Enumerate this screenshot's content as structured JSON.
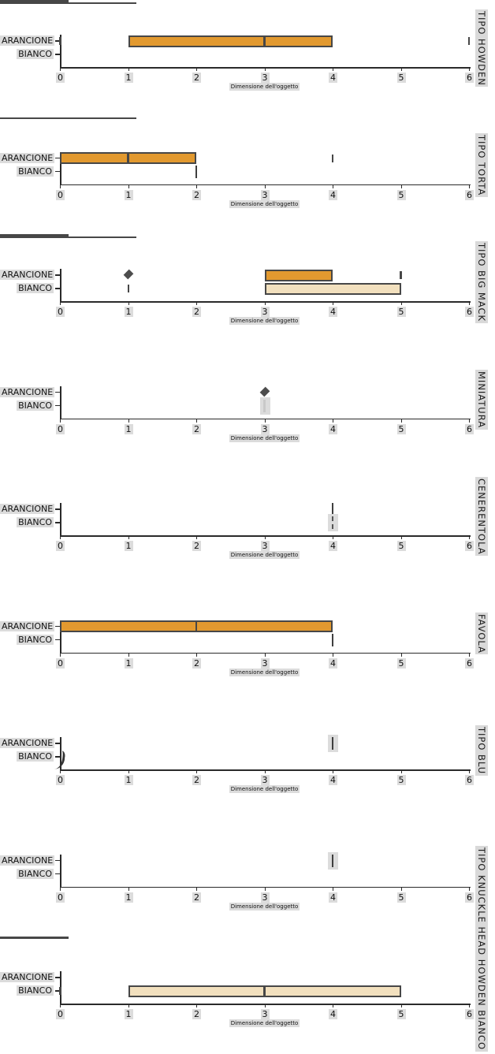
{
  "colors": {
    "orange_box": "#E2992F",
    "beige_box": "#F2E0BE",
    "box_border": "#474747",
    "axis_line": "#2a2a2a",
    "text_highlight_bg": "#dcdcdc",
    "outlier": "#4d4d4d"
  },
  "axis": {
    "xlabel": "Dimensione dell'oggetto",
    "xmin": 0,
    "xmax": 6,
    "ticks": [
      0,
      1,
      2,
      3,
      4,
      5,
      6
    ],
    "categories": [
      "ARANCIONE",
      "BIANCO"
    ]
  },
  "chart_data": [
    {
      "type": "box",
      "title": "TIPO HOWDEN",
      "xlabel": "Dimensione dell'oggetto",
      "xlim": [
        0,
        6
      ],
      "groups": [
        {
          "category": "ARANCIONE",
          "fill": "orange",
          "q1": 1,
          "median": 3,
          "q3": 4,
          "whisker_low": 0,
          "whisker_high": 6,
          "outliers": []
        },
        {
          "category": "BIANCO"
        }
      ]
    },
    {
      "type": "box",
      "title": "TIPO TORTA",
      "xlabel": "Dimensione dell'oggetto",
      "xlim": [
        0,
        6
      ],
      "groups": [
        {
          "category": "ARANCIONE",
          "fill": "orange",
          "q1": 0,
          "median": 1,
          "q3": 2,
          "whisker_low": 0,
          "whisker_high": 4,
          "outliers": []
        },
        {
          "category": "BIANCO",
          "single_value": 2,
          "style": "solid"
        }
      ]
    },
    {
      "type": "box",
      "title": "TIPO BIG MACK",
      "xlabel": "Dimensione dell'oggetto",
      "xlim": [
        0,
        6
      ],
      "groups": [
        {
          "category": "ARANCIONE",
          "fill": "orange",
          "q1": 3,
          "median": 3,
          "q3": 4,
          "whisker_low": 3,
          "whisker_high": 5,
          "outliers": [
            1
          ]
        },
        {
          "category": "BIANCO",
          "fill": "beige",
          "q1": 3,
          "median": 3,
          "q3": 5,
          "whisker_low": 1,
          "whisker_high": 5,
          "outliers": []
        }
      ]
    },
    {
      "type": "box",
      "title": "MINIATURA",
      "xlabel": "Dimensione dell'oggetto",
      "xlim": [
        0,
        6
      ],
      "groups": [
        {
          "category": "ARANCIONE",
          "outliers": [
            3
          ]
        },
        {
          "category": "BIANCO",
          "single_value": 3,
          "style": "ghost"
        }
      ]
    },
    {
      "type": "box",
      "title": "CENERENTOLA",
      "xlabel": "Dimensione dell'oggetto",
      "xlim": [
        0,
        6
      ],
      "groups": [
        {
          "category": "ARANCIONE",
          "single_value": 4,
          "style": "solid"
        },
        {
          "category": "BIANCO",
          "single_value": 4,
          "style": "dashed-highlight"
        }
      ]
    },
    {
      "type": "box",
      "title": "FAVOLA",
      "xlabel": "Dimensione dell'oggetto",
      "xlim": [
        0,
        6
      ],
      "groups": [
        {
          "category": "ARANCIONE",
          "fill": "orange",
          "q1": 0,
          "median": 2,
          "q3": 4,
          "whisker_low": 0,
          "whisker_high": 4,
          "outliers": []
        },
        {
          "category": "BIANCO",
          "single_value": 4,
          "style": "solid"
        }
      ]
    },
    {
      "type": "box",
      "title": "TIPO BLU",
      "xlabel": "Dimensione dell'oggetto",
      "xlim": [
        0,
        6
      ],
      "groups": [
        {
          "category": "ARANCIONE",
          "single_value": 4,
          "style": "solid-highlight"
        },
        {
          "category": "BIANCO",
          "single_value": 0,
          "style": "curve"
        }
      ]
    },
    {
      "type": "box",
      "title": "",
      "xlabel": "Dimensione dell'oggetto",
      "xlim": [
        0,
        6
      ],
      "groups": [
        {
          "category": "ARANCIONE",
          "single_value": 4,
          "style": "solid-highlight"
        },
        {
          "category": "BIANCO"
        }
      ]
    },
    {
      "type": "box",
      "title": "TIPO KNUCKLE HEAD HOWDEN BIANCO",
      "xlabel": "Dimensione dell'oggetto",
      "xlim": [
        0,
        6
      ],
      "groups": [
        {
          "category": "ARANCIONE"
        },
        {
          "category": "BIANCO",
          "fill": "beige",
          "q1": 1,
          "median": 3,
          "q3": 5,
          "whisker_low": 0,
          "whisker_high": 5,
          "outliers": []
        }
      ]
    }
  ]
}
